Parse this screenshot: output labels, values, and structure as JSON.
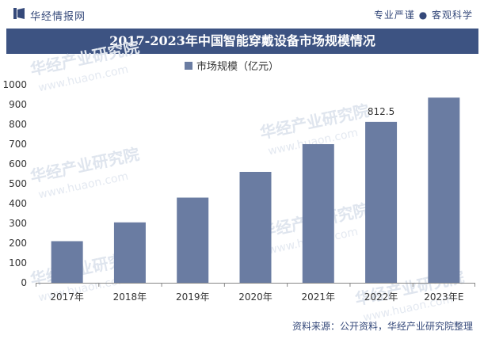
{
  "header": {
    "brand": "华经情报网",
    "slogan": "专业严谨 ● 客观科学"
  },
  "watermark": {
    "text": "华经产业研究院",
    "url": "www.huaon.com"
  },
  "colors": {
    "bar": "#6a7ca2",
    "title_bg": "#3d5382",
    "brand": "#35497a",
    "axis": "#888888"
  },
  "chart_data": {
    "type": "bar",
    "title": "2017-2023年中国智能穿戴设备市场规模情况",
    "categories": [
      "2017年",
      "2018年",
      "2019年",
      "2020年",
      "2021年",
      "2022年",
      "2023年E"
    ],
    "series": [
      {
        "name": "市场规模（亿元）",
        "values": [
          210,
          305,
          430,
          560,
          700,
          812.5,
          935
        ]
      }
    ],
    "data_labels": [
      null,
      null,
      null,
      null,
      null,
      "812.5",
      null
    ],
    "ylim": [
      0,
      1000
    ],
    "yticks": [
      0,
      100,
      200,
      300,
      400,
      500,
      600,
      700,
      800,
      900,
      1000
    ],
    "legend": "top-center",
    "grid": false
  },
  "footer": {
    "source": "资料来源：公开资料，华经产业研究院整理"
  }
}
